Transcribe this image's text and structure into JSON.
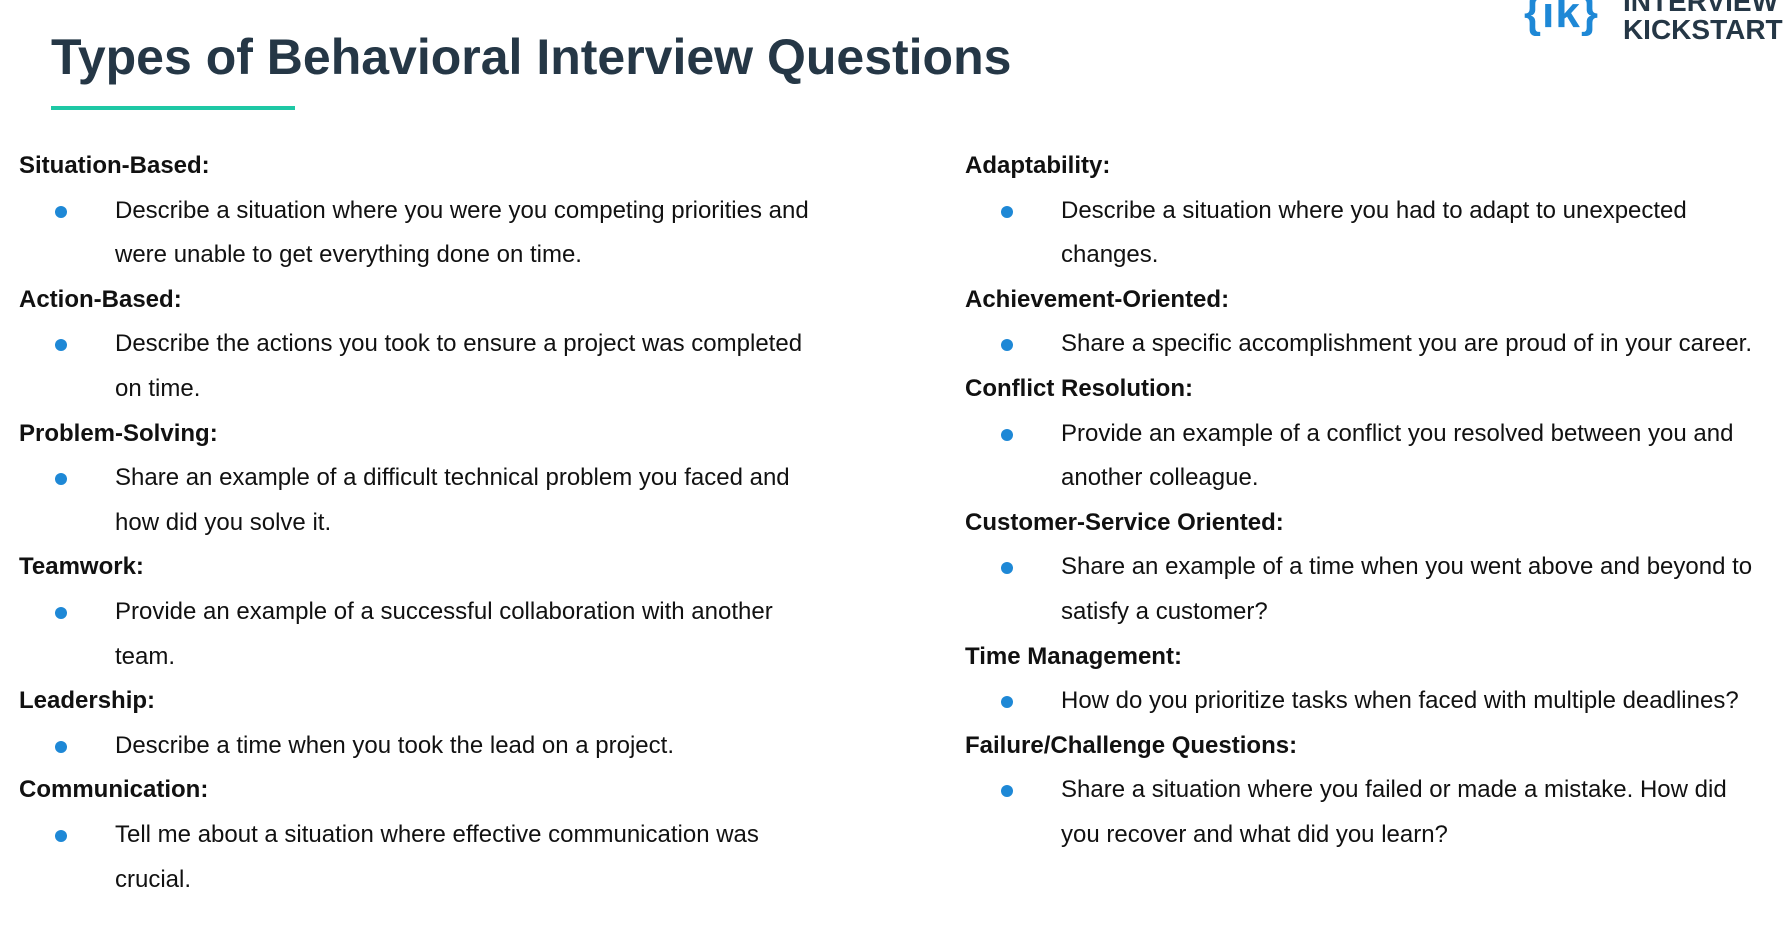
{
  "header": {
    "title": "Types of Behavioral Interview Questions",
    "logo_mark": "{ik}",
    "logo_line1": "INTERVIEW",
    "logo_line2": "KICKSTART"
  },
  "columns": [
    {
      "sections": [
        {
          "heading": "Situation-Based:",
          "items": [
            "Describe a situation where you were you competing priorities and were unable to get everything done on time."
          ]
        },
        {
          "heading": "Action-Based:",
          "items": [
            "Describe the actions you took to ensure a project was completed on time."
          ]
        },
        {
          "heading": "Problem-Solving:",
          "items": [
            "Share an example of a difficult technical problem you faced and how did you solve it."
          ]
        },
        {
          "heading": "Teamwork:",
          "items": [
            "Provide an example of a successful collaboration with another team."
          ]
        },
        {
          "heading": "Leadership:",
          "items": [
            "Describe a time when you took the lead on a project."
          ]
        },
        {
          "heading": "Communication:",
          "items": [
            "Tell me about a situation where effective communication was crucial."
          ]
        }
      ]
    },
    {
      "sections": [
        {
          "heading": "Adaptability:",
          "items": [
            "Describe a situation where you had to adapt to unexpected changes."
          ]
        },
        {
          "heading": "Achievement-Oriented:",
          "items": [
            "Share a specific accomplishment you are proud of in your career."
          ]
        },
        {
          "heading": "Conflict Resolution:",
          "items": [
            "Provide an example of a conflict you resolved between you and another colleague."
          ]
        },
        {
          "heading": "Customer-Service Oriented:",
          "items": [
            "Share an example of a time when you went above and beyond to satisfy a customer?"
          ]
        },
        {
          "heading": "Time Management:",
          "items": [
            "How do you prioritize tasks when faced with multiple deadlines?"
          ]
        },
        {
          "heading": "Failure/Challenge Questions:",
          "items": [
            "Share a situation where you failed or made a mistake. How did you recover and what did you learn?"
          ]
        }
      ]
    }
  ]
}
